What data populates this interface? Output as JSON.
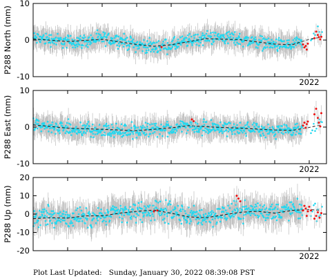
{
  "footer": {
    "label": "Plot Last Updated:",
    "timestamp": "Sunday, January 30, 2022 08:39:08 PST"
  },
  "chart_data": [
    {
      "type": "scatter",
      "ylabel": "P288 North (mm)",
      "ylim": [
        -10,
        10
      ],
      "yticks": [
        10,
        0,
        -10
      ],
      "xrange": [
        2014.0,
        2022.5
      ],
      "xtick_labels": [
        {
          "value": 2022.0,
          "label": "2022"
        }
      ],
      "grid": false,
      "colors": {
        "daily": "#22d8f0",
        "rapid": "#ee1111",
        "error_bar": "#bdbdbd",
        "model": "#222222"
      },
      "series": [
        {
          "values": [
            [
              2014.0,
              0.5
            ],
            [
              2014.5,
              0.2
            ],
            [
              2015.0,
              -0.5
            ],
            [
              2015.5,
              -0.3
            ],
            [
              2016.0,
              0.4
            ],
            [
              2016.5,
              0.0
            ],
            [
              2017.0,
              -1.3
            ],
            [
              2017.5,
              -1.9
            ],
            [
              2018.0,
              -1.5
            ],
            [
              2018.5,
              -0.2
            ],
            [
              2019.0,
              0.6
            ],
            [
              2019.5,
              0.8
            ],
            [
              2020.0,
              0.2
            ],
            [
              2020.5,
              -0.5
            ],
            [
              2021.0,
              -1.3
            ],
            [
              2021.5,
              -1.5
            ],
            [
              2021.8,
              -0.8
            ],
            [
              2022.0,
              0.8
            ],
            [
              2022.3,
              2.0
            ]
          ]
        },
        {
          "values": [
            [
              2021.82,
              -1.2
            ],
            [
              2021.86,
              -2.0
            ],
            [
              2021.9,
              -1.6
            ],
            [
              2021.93,
              -2.6
            ],
            [
              2021.96,
              -1.0
            ],
            [
              2022.15,
              0.5
            ],
            [
              2022.2,
              2.3
            ],
            [
              2022.25,
              1.4
            ],
            [
              2022.28,
              0.8
            ],
            [
              2022.32,
              0.2
            ],
            [
              2022.35,
              0.9
            ],
            [
              2017.72,
              -1.9
            ]
          ]
        },
        {
          "values": [
            [
              2014.0,
              0.3
            ],
            [
              2015.0,
              -0.4
            ],
            [
              2016.0,
              0.2
            ],
            [
              2017.0,
              -1.2
            ],
            [
              2017.5,
              -1.7
            ],
            [
              2018.0,
              -1.3
            ],
            [
              2019.0,
              0.4
            ],
            [
              2020.0,
              0.1
            ],
            [
              2021.0,
              -1.1
            ],
            [
              2021.5,
              -1.3
            ],
            [
              2022.0,
              0.2
            ],
            [
              2022.35,
              0.8
            ]
          ]
        }
      ]
    },
    {
      "type": "scatter",
      "ylabel": "P288 East (mm)",
      "ylim": [
        -10,
        10
      ],
      "yticks": [
        10,
        0,
        -10
      ],
      "xrange": [
        2014.0,
        2022.5
      ],
      "xtick_labels": [
        {
          "value": 2022.0,
          "label": "2022"
        }
      ],
      "grid": false,
      "colors": {
        "daily": "#22d8f0",
        "rapid": "#ee1111",
        "error_bar": "#bdbdbd",
        "model": "#222222"
      },
      "series": [
        {
          "values": [
            [
              2014.0,
              0.8
            ],
            [
              2014.5,
              0.1
            ],
            [
              2015.0,
              -0.4
            ],
            [
              2015.5,
              -0.7
            ],
            [
              2016.0,
              -0.8
            ],
            [
              2016.5,
              -1.0
            ],
            [
              2017.0,
              -1.2
            ],
            [
              2017.5,
              -0.6
            ],
            [
              2018.0,
              -0.4
            ],
            [
              2018.3,
              0.6
            ],
            [
              2018.6,
              0.3
            ],
            [
              2019.0,
              0.0
            ],
            [
              2019.5,
              -0.3
            ],
            [
              2020.0,
              -0.4
            ],
            [
              2020.5,
              -0.8
            ],
            [
              2021.0,
              -1.0
            ],
            [
              2021.5,
              -1.1
            ],
            [
              2021.8,
              -0.5
            ],
            [
              2022.0,
              -0.2
            ],
            [
              2022.3,
              1.0
            ]
          ]
        },
        {
          "values": [
            [
              2021.82,
              0.4
            ],
            [
              2021.86,
              1.2
            ],
            [
              2021.9,
              -0.2
            ],
            [
              2021.93,
              0.8
            ],
            [
              2021.96,
              1.5
            ],
            [
              2022.15,
              3.5
            ],
            [
              2022.2,
              5.0
            ],
            [
              2022.25,
              2.5
            ],
            [
              2022.28,
              1.2
            ],
            [
              2022.32,
              0.2
            ],
            [
              2022.35,
              3.8
            ],
            [
              2018.6,
              2.1
            ],
            [
              2018.65,
              1.6
            ]
          ]
        },
        {
          "values": [
            [
              2014.0,
              0.6
            ],
            [
              2015.0,
              -0.3
            ],
            [
              2016.0,
              -0.6
            ],
            [
              2017.0,
              -1.0
            ],
            [
              2018.0,
              -0.2
            ],
            [
              2018.5,
              0.4
            ],
            [
              2019.0,
              0.1
            ],
            [
              2020.0,
              -0.3
            ],
            [
              2021.0,
              -0.8
            ],
            [
              2021.5,
              -0.9
            ],
            [
              2022.0,
              -0.1
            ],
            [
              2022.35,
              0.6
            ]
          ]
        }
      ]
    },
    {
      "type": "scatter",
      "ylabel": "P288 Up (mm)",
      "ylim": [
        -20,
        20
      ],
      "yticks": [
        20,
        10,
        0,
        -10,
        -20
      ],
      "xrange": [
        2014.0,
        2022.5
      ],
      "xtick_labels": [
        {
          "value": 2022.0,
          "label": "2022"
        }
      ],
      "grid": false,
      "colors": {
        "daily": "#22d8f0",
        "rapid": "#ee1111",
        "error_bar": "#bdbdbd",
        "model": "#222222"
      },
      "series": [
        {
          "values": [
            [
              2014.0,
              -2.0
            ],
            [
              2014.5,
              -1.5
            ],
            [
              2015.0,
              -2.5
            ],
            [
              2015.5,
              -1.0
            ],
            [
              2016.0,
              -1.5
            ],
            [
              2016.5,
              0.5
            ],
            [
              2017.0,
              1.2
            ],
            [
              2017.5,
              2.0
            ],
            [
              2018.0,
              1.0
            ],
            [
              2018.5,
              -1.0
            ],
            [
              2019.0,
              -1.5
            ],
            [
              2019.5,
              0.0
            ],
            [
              2020.0,
              1.5
            ],
            [
              2020.5,
              2.0
            ],
            [
              2021.0,
              1.0
            ],
            [
              2021.5,
              2.5
            ],
            [
              2022.0,
              1.0
            ],
            [
              2022.3,
              0.5
            ]
          ]
        },
        {
          "values": [
            [
              2021.82,
              2.0
            ],
            [
              2021.86,
              4.5
            ],
            [
              2021.9,
              3.0
            ],
            [
              2021.93,
              -1.0
            ],
            [
              2021.96,
              1.5
            ],
            [
              2022.0,
              4.0
            ],
            [
              2022.05,
              2.0
            ],
            [
              2022.15,
              -2.5
            ],
            [
              2022.2,
              -1.0
            ],
            [
              2022.25,
              1.0
            ],
            [
              2022.3,
              -2.0
            ],
            [
              2022.35,
              0.5
            ],
            [
              2019.9,
              10.0
            ],
            [
              2019.95,
              8.5
            ],
            [
              2020.0,
              7.0
            ],
            [
              2017.5,
              1.5
            ],
            [
              2017.6,
              2.0
            ]
          ]
        },
        {
          "values": [
            [
              2014.0,
              -2.5
            ],
            [
              2014.5,
              -2.0
            ],
            [
              2015.0,
              -2.2
            ],
            [
              2015.5,
              -1.0
            ],
            [
              2016.0,
              -1.0
            ],
            [
              2016.5,
              0.5
            ],
            [
              2017.0,
              1.5
            ],
            [
              2017.5,
              2.2
            ],
            [
              2018.0,
              0.5
            ],
            [
              2018.5,
              -1.5
            ],
            [
              2019.0,
              -2.0
            ],
            [
              2019.5,
              -0.5
            ],
            [
              2020.0,
              1.0
            ],
            [
              2020.5,
              1.5
            ],
            [
              2021.0,
              0.5
            ],
            [
              2021.5,
              2.0
            ],
            [
              2022.0,
              2.5
            ],
            [
              2022.35,
              2.0
            ]
          ]
        }
      ]
    }
  ]
}
